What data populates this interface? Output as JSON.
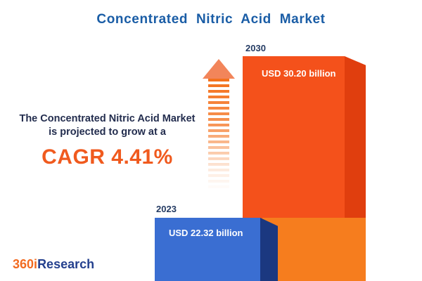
{
  "title": "Concentrated Nitric Acid Market",
  "annotation": {
    "line1": "The Concentrated Nitric Acid Market",
    "line2": "is projected to grow at a",
    "cagr_text": "CAGR 4.41%"
  },
  "bars": {
    "y2023": {
      "year": "2023",
      "value_label": "USD 22.32 billion"
    },
    "y2030": {
      "year": "2030",
      "value_label": "USD 30.20 billion"
    }
  },
  "logo": {
    "prefix": "360",
    "middle": "i",
    "suffix": "Research"
  },
  "icons": {
    "growth_arrow": "up-arrow-icon"
  },
  "colors": {
    "title_blue": "#1A5DA6",
    "navy_text": "#232D4E",
    "accent_orange": "#F05A1E",
    "bar_2023_front": "#3A6ED2",
    "bar_2023_side": "#1B3880",
    "bar_2030_front": "#F4511B",
    "bar_2030_side": "#E03E0E",
    "bar_2030_lower": "#F67D1E"
  },
  "chart_data": {
    "type": "bar",
    "categories": [
      "2023",
      "2030"
    ],
    "values": [
      22.32,
      30.2
    ],
    "value_labels": [
      "USD 22.32 billion",
      "USD 30.20 billion"
    ],
    "unit": "USD billion",
    "title": "Concentrated Nitric Acid Market",
    "cagr_percent": 4.41,
    "annotations": [
      "The Concentrated Nitric Acid Market is projected to grow at a CAGR 4.41%"
    ],
    "legend": "none",
    "grid": false,
    "bar_colors": [
      "#3A6ED2",
      "#F4511B"
    ]
  }
}
